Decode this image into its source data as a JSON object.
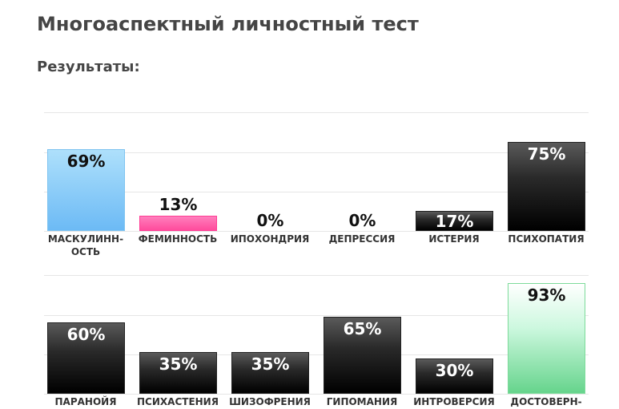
{
  "page": {
    "title": "Многоаспектный личностный тест",
    "subtitle": "Результаты:"
  },
  "chart_data": [
    {
      "type": "bar",
      "categories": [
        "МАСКУЛИНН-\nОСТЬ",
        "ФЕМИННОСТЬ",
        "ИПОХОНДРИЯ",
        "ДЕПРЕССИЯ",
        "ИСТЕРИЯ",
        "ПСИХОПАТИЯ"
      ],
      "values": [
        69,
        13,
        0,
        0,
        17,
        75
      ],
      "value_labels": [
        "69%",
        "13%",
        "0%",
        "0%",
        "17%",
        "75%"
      ],
      "colors": [
        "#6cbaf5",
        "#ff4b9c",
        "#000000",
        "#000000",
        "#000000",
        "#000000"
      ],
      "ylim": [
        0,
        100
      ]
    },
    {
      "type": "bar",
      "categories": [
        "ПАРАНОЙЯ",
        "ПСИХАСТЕНИЯ",
        "ШИЗОФРЕНИЯ",
        "ГИПОМАНИЯ",
        "ИНТРОВЕРСИЯ",
        "ДОСТОВЕРН-"
      ],
      "values": [
        60,
        35,
        35,
        65,
        30,
        93
      ],
      "value_labels": [
        "60%",
        "35%",
        "35%",
        "65%",
        "30%",
        "93%"
      ],
      "colors": [
        "#000000",
        "#000000",
        "#000000",
        "#000000",
        "#000000",
        "#66d48c"
      ],
      "ylim": [
        0,
        100
      ]
    }
  ]
}
